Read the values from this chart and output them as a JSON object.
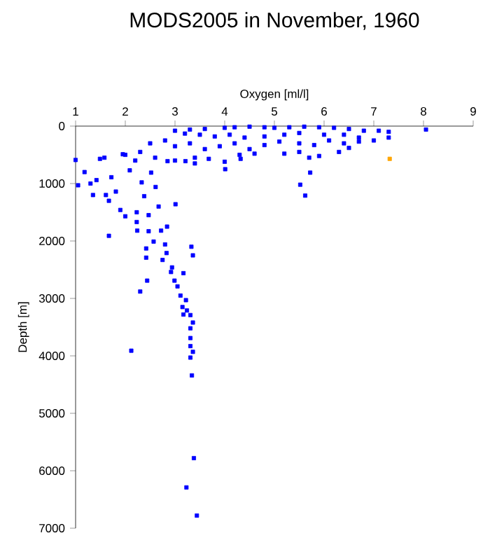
{
  "chart_data": {
    "type": "scatter",
    "title": "MODS2005 in November, 1960",
    "xlabel": "Oxygen [ml/l]",
    "ylabel": "Depth [m]",
    "xlim": [
      1,
      9
    ],
    "xticks": [
      1,
      2,
      3,
      4,
      5,
      6,
      7,
      8,
      9
    ],
    "ylim": [
      7000,
      0
    ],
    "yticks": [
      0,
      1000,
      2000,
      3000,
      4000,
      5000,
      6000,
      7000
    ],
    "grid": false,
    "marker": "square",
    "series": [
      {
        "color": "#0000ff",
        "x": [
          3.0,
          3.3,
          3.6,
          4.0,
          4.2,
          4.5,
          4.8,
          5.0,
          5.3,
          5.6,
          5.9,
          6.2,
          6.5,
          6.8,
          7.1,
          7.3,
          8.05,
          6.7,
          6.4,
          6.0,
          5.5,
          5.2,
          4.8,
          4.4,
          4.1,
          3.8,
          3.5,
          3.2,
          2.5,
          2.8,
          3.0,
          3.3,
          3.6,
          3.9,
          4.2,
          4.5,
          4.8,
          5.1,
          5.5,
          5.8,
          6.1,
          6.4,
          6.7,
          7.3,
          7.0,
          6.5,
          5.5,
          4.3,
          3.0,
          2.3,
          2.0,
          2.2,
          2.6,
          3.4,
          4.0,
          4.6,
          5.9,
          6.3,
          5.7,
          5.2,
          5.72,
          5.52,
          5.62,
          4.01,
          4.32,
          1.0,
          1.05,
          1.18,
          1.3,
          1.35,
          1.49,
          1.58,
          1.72,
          1.81,
          1.67,
          1.95,
          2.09,
          2.33,
          2.38,
          2.23,
          2.47,
          2.61,
          3.01,
          2.67,
          2.0,
          1.9,
          1.61,
          1.42,
          2.52,
          2.85,
          3.21,
          3.4,
          3.68,
          2.84,
          2.47,
          2.23,
          1.67,
          2.24,
          2.42,
          2.57,
          2.72,
          2.8,
          2.42,
          2.75,
          2.83,
          3.33,
          3.36,
          2.94,
          2.92,
          3.17,
          2.99,
          3.05,
          2.44,
          2.3,
          3.11,
          3.22,
          3.15,
          3.24,
          3.17,
          3.31,
          3.36,
          3.31,
          3.31,
          3.31,
          3.36,
          3.31,
          3.34,
          2.12,
          3.38,
          3.23,
          3.44
        ],
        "values": [
          80,
          60,
          50,
          30,
          20,
          10,
          20,
          30,
          20,
          10,
          20,
          30,
          50,
          80,
          80,
          100,
          60,
          200,
          150,
          150,
          120,
          150,
          180,
          200,
          150,
          180,
          150,
          130,
          300,
          250,
          350,
          300,
          400,
          350,
          300,
          400,
          330,
          270,
          300,
          330,
          250,
          300,
          270,
          200,
          250,
          380,
          450,
          500,
          600,
          450,
          500,
          600,
          550,
          550,
          620,
          480,
          520,
          450,
          550,
          480,
          810,
          1020,
          1210,
          750,
          570,
          590,
          1030,
          800,
          1000,
          1200,
          570,
          550,
          890,
          1140,
          1300,
          490,
          770,
          980,
          1220,
          1500,
          1550,
          1060,
          1360,
          1400,
          1570,
          1460,
          1200,
          940,
          810,
          610,
          610,
          650,
          570,
          1750,
          1830,
          1670,
          1910,
          1820,
          2130,
          2010,
          1820,
          2060,
          2290,
          2330,
          2210,
          2100,
          2250,
          2460,
          2540,
          2560,
          2690,
          2790,
          2690,
          2880,
          2950,
          3030,
          3150,
          3210,
          3280,
          3290,
          3420,
          3520,
          3690,
          3830,
          3930,
          4030,
          4340,
          3910,
          5780,
          6290,
          6780
        ]
      },
      {
        "color": "#ffa500",
        "x": [
          7.32
        ],
        "values": [
          570
        ]
      }
    ]
  }
}
